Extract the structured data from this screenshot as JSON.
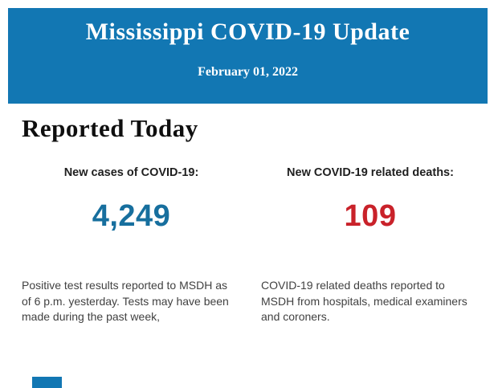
{
  "header": {
    "title": "Mississippi COVID-19 Update",
    "date": "February 01, 2022",
    "background_color": "#1277B3",
    "text_color": "#ffffff"
  },
  "section": {
    "title": "Reported Today"
  },
  "stats": [
    {
      "label": "New cases of COVID-19:",
      "value": "4,249",
      "value_color": "#176F9E",
      "description": "Positive test results reported to MSDH as\nof 6 p.m. yesterday. Tests may have been\nmade during the past week,"
    },
    {
      "label": "New COVID-19 related deaths:",
      "value": "109",
      "value_color": "#C9222A",
      "description": "COVID-19 related deaths reported to\nMSDH from hospitals, medical examiners\nand coroners."
    }
  ],
  "footer": {
    "partial_block_color": "#1277B3"
  }
}
